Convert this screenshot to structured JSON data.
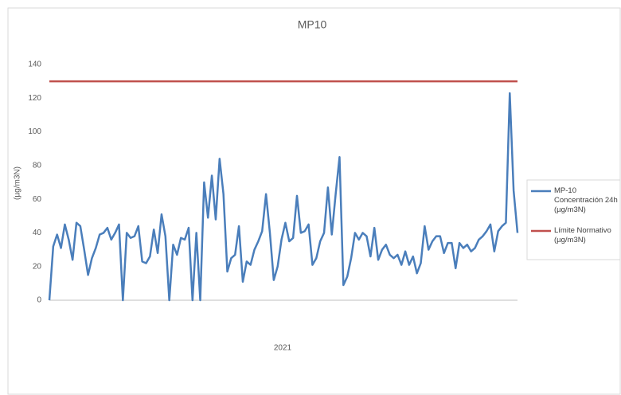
{
  "chart_data": {
    "type": "line",
    "title": "MP10",
    "xlabel": "2021",
    "ylabel": "(µg/m3N)",
    "ylim": [
      0,
      140
    ],
    "yticks": [
      0,
      20,
      40,
      60,
      80,
      100,
      120,
      140
    ],
    "grid": false,
    "legend": "right",
    "series": [
      {
        "name": "MP-10 Concentración 24h (µg/m3N)",
        "color": "#4a7ebb",
        "values": [
          0,
          32,
          39,
          31,
          45,
          36,
          24,
          46,
          44,
          30,
          15,
          25,
          31,
          39,
          40,
          43,
          36,
          40,
          45,
          0,
          40,
          37,
          38,
          44,
          23,
          22,
          26,
          42,
          28,
          51,
          38,
          0,
          33,
          27,
          37,
          36,
          43,
          0,
          40,
          0,
          70,
          49,
          74,
          48,
          84,
          63,
          17,
          25,
          27,
          44,
          11,
          23,
          21,
          30,
          35,
          41,
          63,
          40,
          12,
          20,
          36,
          46,
          35,
          37,
          62,
          40,
          41,
          45,
          21,
          25,
          35,
          40,
          67,
          39,
          63,
          85,
          9,
          14,
          25,
          40,
          36,
          40,
          38,
          26,
          43,
          24,
          30,
          33,
          27,
          25,
          27,
          21,
          29,
          21,
          26,
          16,
          22,
          44,
          30,
          35,
          38,
          38,
          28,
          34,
          34,
          19,
          34,
          31,
          33,
          29,
          31,
          36,
          38,
          41,
          45,
          29,
          41,
          44,
          46,
          123,
          65,
          40
        ]
      }
    ],
    "limit": {
      "name": "Límite Normativo (µg/m3N)",
      "color": "#c0504d",
      "value": 130
    }
  }
}
